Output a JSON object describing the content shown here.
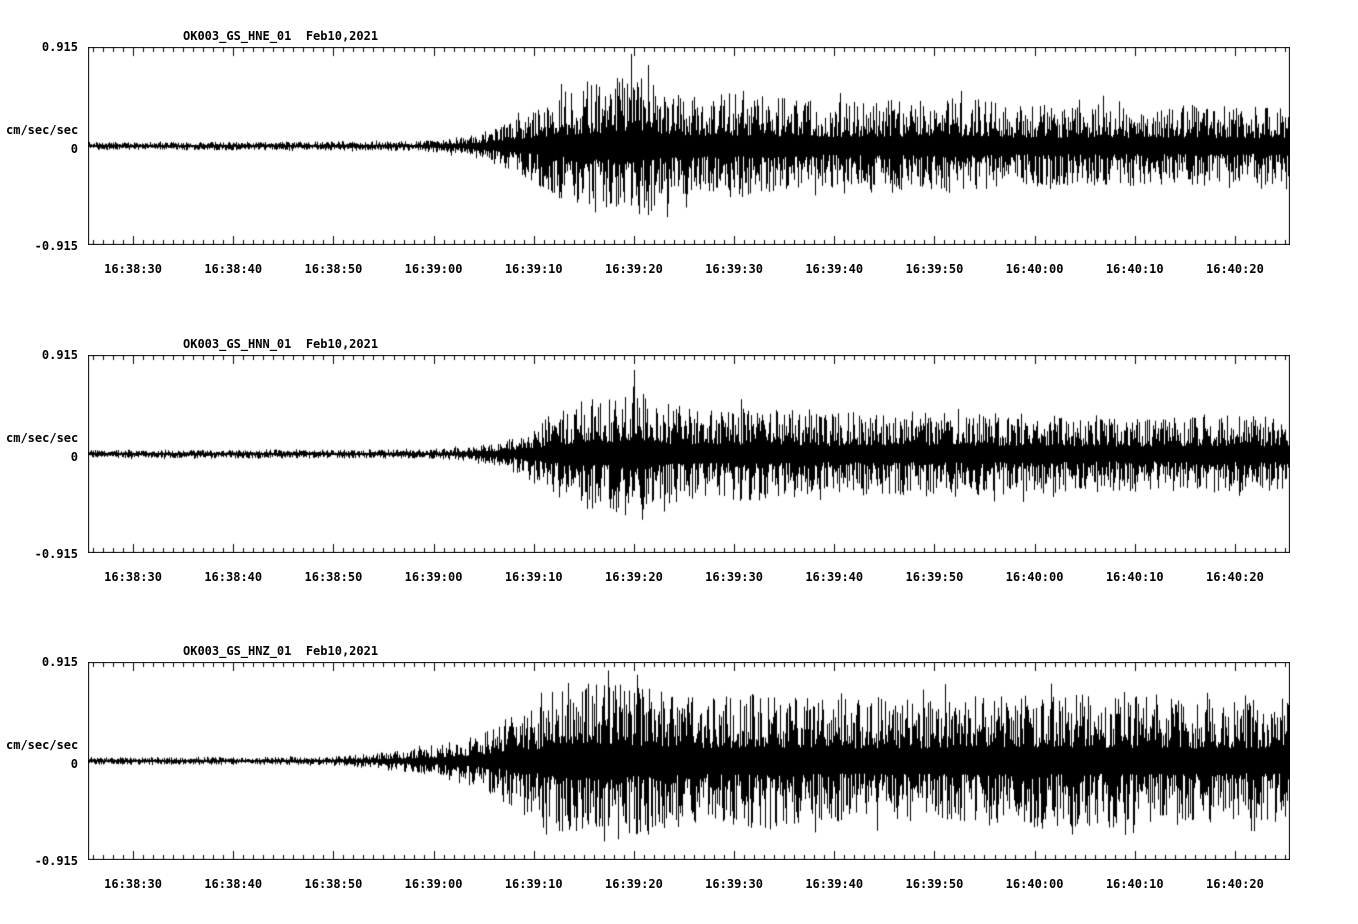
{
  "page": {
    "background": "#ffffff",
    "foreground": "#000000",
    "description": "Three-channel strong-motion seismogram record display"
  },
  "chart_data": [
    {
      "type": "line",
      "chart_kind": "seismogram",
      "title": "OK003_GS_HNE_01  Feb10,2021",
      "station_channel": "OK003_GS_HNE_01",
      "date": "Feb10,2021",
      "ylabel": "cm/sec/sec",
      "ylim": [
        -0.915,
        0.915
      ],
      "grid": false,
      "legend": "none",
      "line_color": "#000000",
      "y_axis": {
        "max": 0.915,
        "max_label": "0.915",
        "zero_label": "0",
        "min_label": "-0.915",
        "units": "cm/sec/sec"
      },
      "x_axis": {
        "start_time": "16:38:25.5",
        "end_time": "16:40:25.5",
        "duration_s": 120,
        "first_major_tick_s": 4.5,
        "major_interval_s": 10,
        "minor_interval_s": 1
      },
      "x_tick_labels": [
        "16:38:30",
        "16:38:40",
        "16:38:50",
        "16:39:00",
        "16:39:10",
        "16:39:20",
        "16:39:30",
        "16:39:40",
        "16:39:50",
        "16:40:00",
        "16:40:10",
        "16:40:20"
      ],
      "envelope": {
        "t_s": [
          0,
          33,
          38,
          42,
          46,
          49,
          52,
          54.5,
          57,
          61,
          66,
          74,
          84,
          95,
          108,
          120
        ],
        "amp": [
          0.04,
          0.045,
          0.09,
          0.22,
          0.42,
          0.55,
          0.6,
          0.73,
          0.55,
          0.46,
          0.49,
          0.42,
          0.45,
          0.4,
          0.38,
          0.37
        ]
      },
      "seed": 101
    },
    {
      "type": "line",
      "chart_kind": "seismogram",
      "title": "OK003_GS_HNN_01  Feb10,2021",
      "station_channel": "OK003_GS_HNN_01",
      "date": "Feb10,2021",
      "ylabel": "cm/sec/sec",
      "ylim": [
        -0.915,
        0.915
      ],
      "grid": false,
      "legend": "none",
      "line_color": "#000000",
      "y_axis": {
        "max": 0.915,
        "max_label": "0.915",
        "zero_label": "0",
        "min_label": "-0.915",
        "units": "cm/sec/sec"
      },
      "x_axis": {
        "start_time": "16:38:25.5",
        "end_time": "16:40:25.5",
        "duration_s": 120,
        "first_major_tick_s": 4.5,
        "major_interval_s": 10,
        "minor_interval_s": 1
      },
      "x_tick_labels": [
        "16:38:30",
        "16:38:40",
        "16:38:50",
        "16:39:00",
        "16:39:10",
        "16:39:20",
        "16:39:30",
        "16:39:40",
        "16:39:50",
        "16:40:00",
        "16:40:10",
        "16:40:20"
      ],
      "envelope": {
        "t_s": [
          0,
          34,
          39,
          43,
          46,
          49,
          52,
          54.5,
          57,
          61,
          66,
          74,
          84,
          95,
          108,
          120
        ],
        "amp": [
          0.04,
          0.045,
          0.08,
          0.2,
          0.36,
          0.5,
          0.55,
          0.71,
          0.5,
          0.43,
          0.46,
          0.39,
          0.41,
          0.37,
          0.36,
          0.35
        ]
      },
      "seed": 202
    },
    {
      "type": "line",
      "chart_kind": "seismogram",
      "title": "OK003_GS_HNZ_01  Feb10,2021",
      "station_channel": "OK003_GS_HNZ_01",
      "date": "Feb10,2021",
      "ylabel": "cm/sec/sec",
      "ylim": [
        -0.915,
        0.915
      ],
      "grid": false,
      "legend": "none",
      "line_color": "#000000",
      "y_axis": {
        "max": 0.915,
        "max_label": "0.915",
        "zero_label": "0",
        "min_label": "-0.915",
        "units": "cm/sec/sec"
      },
      "x_axis": {
        "start_time": "16:38:25.5",
        "end_time": "16:40:25.5",
        "duration_s": 120,
        "first_major_tick_s": 4.5,
        "major_interval_s": 10,
        "minor_interval_s": 1
      },
      "x_tick_labels": [
        "16:38:30",
        "16:38:40",
        "16:38:50",
        "16:39:00",
        "16:39:10",
        "16:39:20",
        "16:39:30",
        "16:39:40",
        "16:39:50",
        "16:40:00",
        "16:40:10",
        "16:40:20"
      ],
      "envelope": {
        "t_s": [
          0,
          24,
          28,
          33,
          38,
          43,
          47,
          50,
          54,
          58,
          64,
          72,
          82,
          92,
          102,
          112,
          120
        ],
        "amp": [
          0.035,
          0.04,
          0.07,
          0.12,
          0.24,
          0.46,
          0.72,
          0.82,
          0.76,
          0.66,
          0.62,
          0.64,
          0.6,
          0.63,
          0.61,
          0.59,
          0.56
        ]
      },
      "seed": 303
    }
  ]
}
